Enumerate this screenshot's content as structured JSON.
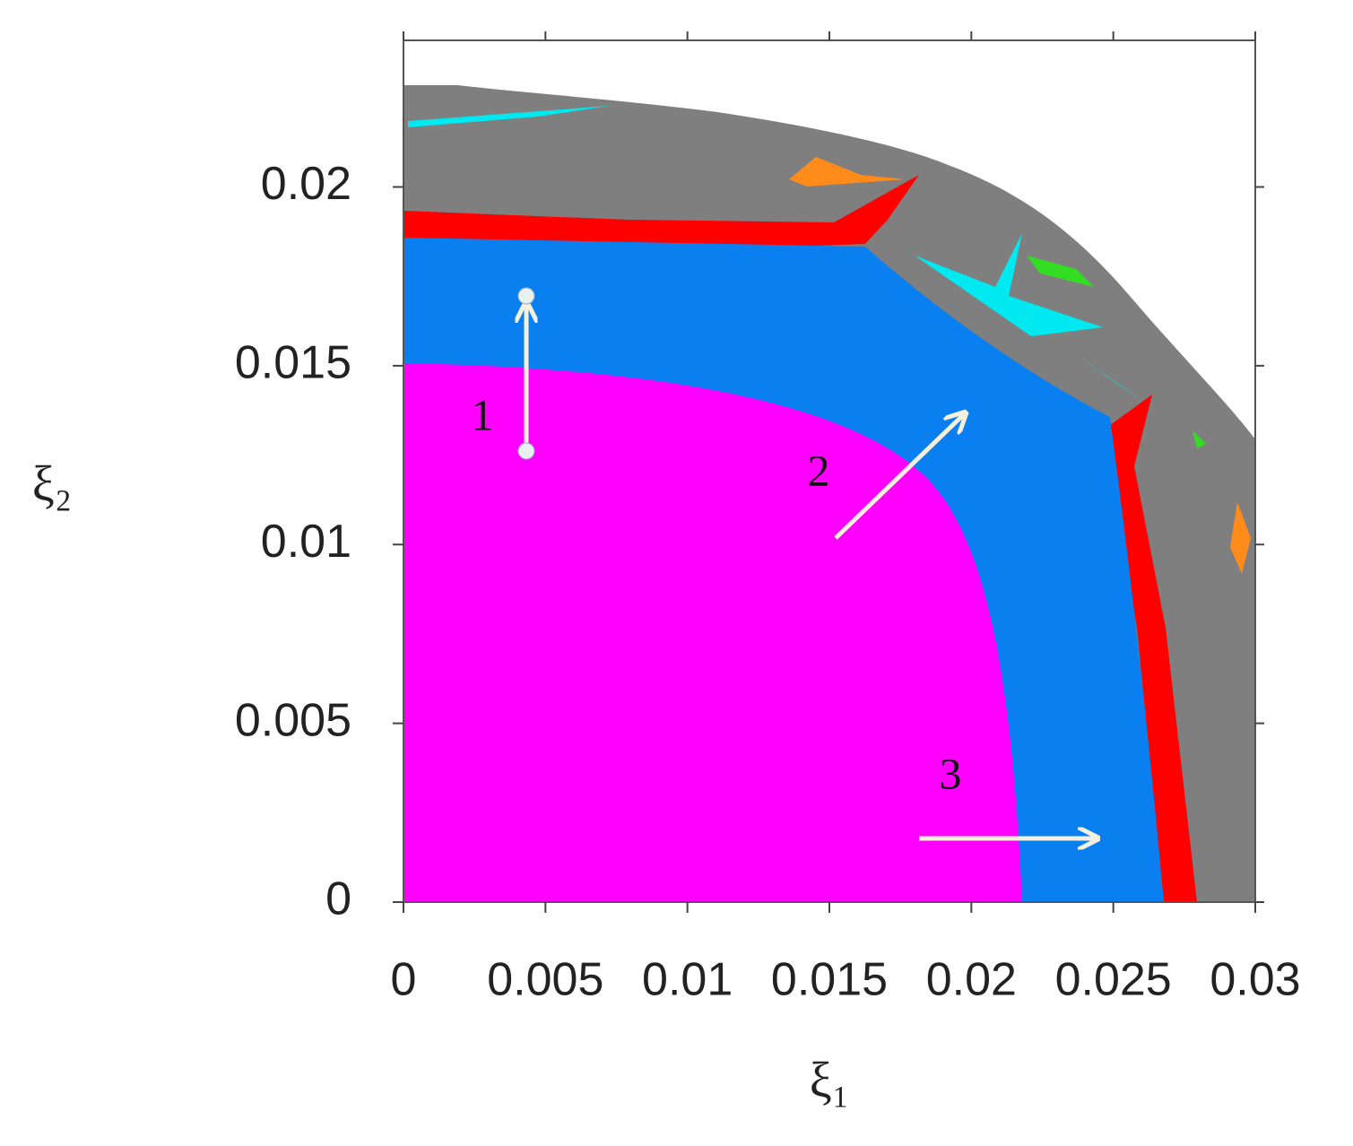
{
  "chart_data": {
    "type": "basin",
    "x_label": "ξ₁",
    "y_label": "ξ₂",
    "xlim": [
      0,
      0.03
    ],
    "ylim": [
      0,
      0.0241
    ],
    "xticks": [
      0,
      0.005,
      0.01,
      0.015,
      0.02,
      0.025,
      0.03
    ],
    "yticks": [
      0,
      0.005,
      0.01,
      0.015,
      0.02
    ],
    "annotations": [
      "1",
      "2",
      "3"
    ]
  }
}
